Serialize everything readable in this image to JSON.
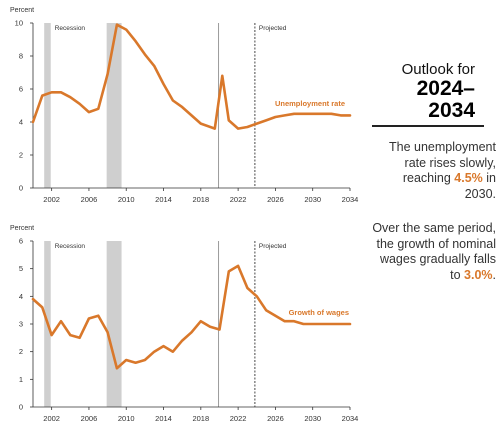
{
  "chart_data": [
    {
      "type": "line",
      "ylabel": "Percent",
      "xlim": [
        2000,
        2034
      ],
      "ylim": [
        0,
        10
      ],
      "xticks": [
        2002,
        2006,
        2010,
        2014,
        2018,
        2022,
        2026,
        2030,
        2034
      ],
      "yticks": [
        0,
        2,
        4,
        6,
        8,
        10
      ],
      "grid": false,
      "recession_label": "Recession",
      "recessions": [
        [
          2001.2,
          2001.9
        ],
        [
          2007.9,
          2009.5
        ]
      ],
      "divider_x": 2019.9,
      "projected_x": 2023.8,
      "projected_label": "Projected",
      "series": [
        {
          "name": "Unemployment rate",
          "color": "#d9782b",
          "x": [
            2000.0,
            2001.0,
            2002.0,
            2003.0,
            2004.0,
            2005.0,
            2006.0,
            2007.0,
            2008.0,
            2009.0,
            2010.0,
            2011.0,
            2012.0,
            2013.0,
            2014.0,
            2015.0,
            2016.0,
            2017.0,
            2018.0,
            2019.5,
            2020.3,
            2021.0,
            2022.0,
            2023.0,
            2024.0,
            2025.0,
            2026.0,
            2027.0,
            2028.0,
            2029.0,
            2030.0,
            2031.0,
            2032.0,
            2033.0,
            2034.0
          ],
          "y": [
            4.0,
            5.6,
            5.8,
            5.8,
            5.5,
            5.1,
            4.6,
            4.8,
            6.9,
            9.9,
            9.6,
            8.9,
            8.1,
            7.4,
            6.3,
            5.3,
            4.9,
            4.4,
            3.9,
            3.6,
            6.8,
            4.1,
            3.6,
            3.7,
            3.9,
            4.1,
            4.3,
            4.4,
            4.5,
            4.5,
            4.5,
            4.5,
            4.5,
            4.4,
            4.4
          ]
        }
      ]
    },
    {
      "type": "line",
      "ylabel": "Percent",
      "xlim": [
        2000,
        2034
      ],
      "ylim": [
        0,
        6
      ],
      "xticks": [
        2002,
        2006,
        2010,
        2014,
        2018,
        2022,
        2026,
        2030,
        2034
      ],
      "yticks": [
        0,
        1,
        2,
        3,
        4,
        5,
        6
      ],
      "grid": false,
      "recession_label": "Recession",
      "recessions": [
        [
          2001.2,
          2001.9
        ],
        [
          2007.9,
          2009.5
        ]
      ],
      "divider_x": 2019.9,
      "projected_x": 2023.8,
      "projected_label": "Projected",
      "series": [
        {
          "name": "Growth of wages",
          "color": "#d9782b",
          "x": [
            2000.0,
            2001.0,
            2002.0,
            2003.0,
            2004.0,
            2005.0,
            2006.0,
            2007.0,
            2008.0,
            2009.0,
            2010.0,
            2011.0,
            2012.0,
            2013.0,
            2014.0,
            2015.0,
            2016.0,
            2017.0,
            2018.0,
            2019.0,
            2020.0,
            2021.0,
            2022.0,
            2023.0,
            2024.0,
            2025.0,
            2026.0,
            2027.0,
            2028.0,
            2029.0,
            2030.0,
            2031.0,
            2032.0,
            2033.0,
            2034.0
          ],
          "y": [
            3.9,
            3.6,
            2.6,
            3.1,
            2.6,
            2.5,
            3.2,
            3.3,
            2.7,
            1.4,
            1.7,
            1.6,
            1.7,
            2.0,
            2.2,
            2.0,
            2.4,
            2.7,
            3.1,
            2.9,
            2.8,
            4.9,
            5.1,
            4.3,
            4.0,
            3.5,
            3.3,
            3.1,
            3.1,
            3.0,
            3.0,
            3.0,
            3.0,
            3.0,
            3.0
          ]
        }
      ]
    }
  ],
  "sidebar": {
    "outlook_label": "Outlook for",
    "years_line1": "2024–",
    "years_line2": "2034",
    "para1_prefix": "The unemployment rate rises slowly, reaching ",
    "para1_value": "4.5%",
    "para1_suffix": " in 2030.",
    "para2_prefix": "Over the same period, the growth of nominal wages gradually falls to ",
    "para2_value": "3.0%",
    "para2_suffix": ".",
    "accent_color": "#d9782b"
  }
}
